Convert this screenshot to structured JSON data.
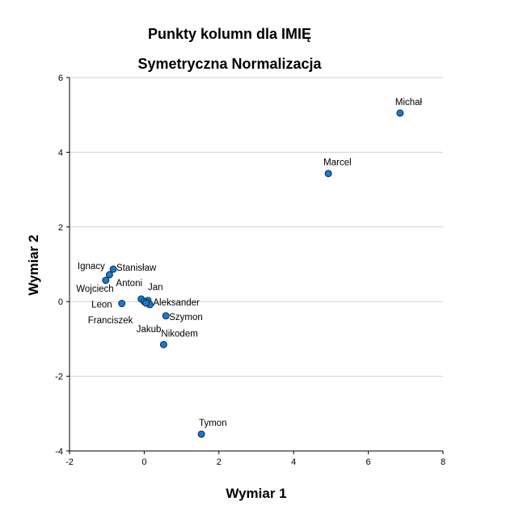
{
  "chart_data": {
    "type": "scatter",
    "title": "Punkty kolumn dla IMIĘ",
    "subtitle": "Symetryczna Normalizacja",
    "xlabel": "Wymiar 1",
    "ylabel": "Wymiar 2",
    "xlim": [
      -2,
      8
    ],
    "ylim": [
      -4,
      6
    ],
    "xticks": [
      "-2",
      "0",
      "2",
      "4",
      "6",
      "8"
    ],
    "yticks": [
      "-4",
      "-2",
      "0",
      "2",
      "4",
      "6"
    ],
    "grid": "horizontal",
    "marker_color": "#1f77c8",
    "marker_edge": "#0b2e4f",
    "points": [
      {
        "label": "Michał",
        "x": 6.85,
        "y": 5.05
      },
      {
        "label": "Marcel",
        "x": 4.93,
        "y": 3.43
      },
      {
        "label": "Ignacy",
        "x": -1.03,
        "y": 0.57
      },
      {
        "label": "Stanisław",
        "x": -0.83,
        "y": 0.87
      },
      {
        "label": "Antoni",
        "x": -0.93,
        "y": 0.72
      },
      {
        "label": "Jan",
        "x": 0.1,
        "y": 0.03
      },
      {
        "label": "Wojciech",
        "x": -0.08,
        "y": 0.07
      },
      {
        "label": "Leon",
        "x": -0.6,
        "y": -0.05
      },
      {
        "label": "Aleksander",
        "x": 0.15,
        "y": -0.08
      },
      {
        "label": "Franciszek",
        "x": 0.0,
        "y": 0.0
      },
      {
        "label": "Jakub",
        "x": 0.05,
        "y": -0.04
      },
      {
        "label": "Szymon",
        "x": 0.58,
        "y": -0.38
      },
      {
        "label": "Nikodem",
        "x": 0.52,
        "y": -1.15
      },
      {
        "label": "Tymon",
        "x": 1.53,
        "y": -3.55
      }
    ]
  }
}
